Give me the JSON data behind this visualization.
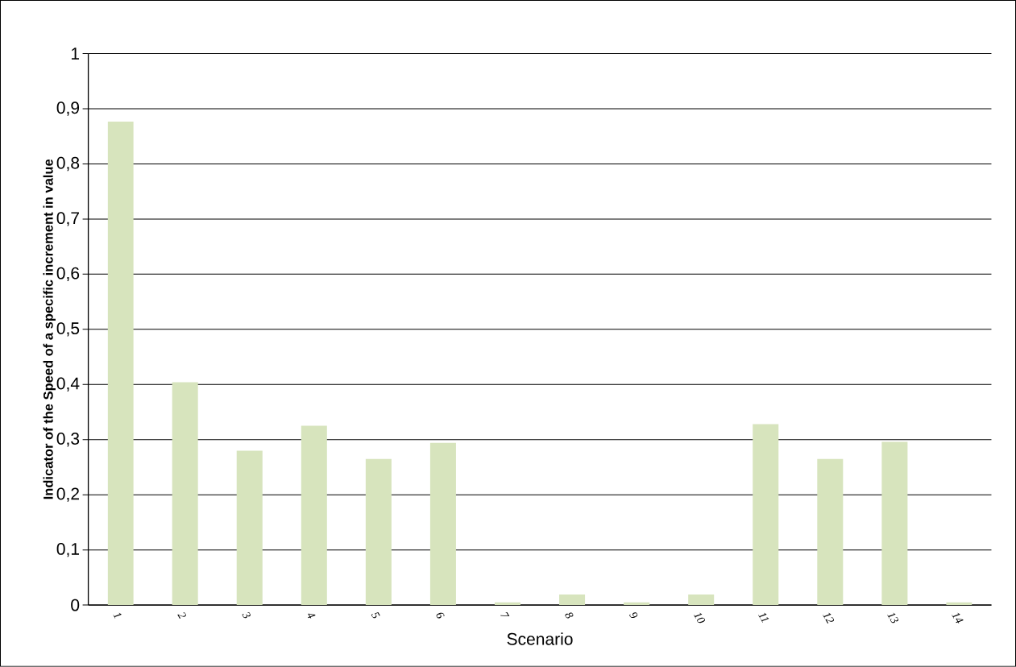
{
  "chart_data": {
    "type": "bar",
    "xlabel": "Scenario",
    "ylabel": "Indicator of the Speed of a specific increment in value",
    "categories": [
      "1",
      "2",
      "3",
      "4",
      "5",
      "6",
      "7",
      "8",
      "9",
      "10",
      "11",
      "12",
      "13",
      "14"
    ],
    "values": [
      0.877,
      0.404,
      0.28,
      0.325,
      0.265,
      0.294,
      0.005,
      0.019,
      0.005,
      0.019,
      0.328,
      0.265,
      0.296,
      0.005
    ],
    "color": "#d7e4bd",
    "ylim": [
      0,
      1
    ],
    "yticks": [
      0,
      {
        "value": 0.1,
        "label": "0,1"
      },
      {
        "value": 0.2,
        "label": "0,2"
      },
      {
        "value": 0.3,
        "label": "0,3"
      },
      {
        "value": 0.4,
        "label": "0,4"
      },
      {
        "value": 0.5,
        "label": "0,5"
      },
      {
        "value": 0.6,
        "label": "0,6"
      },
      {
        "value": 0.7,
        "label": "0,7"
      },
      {
        "value": 0.8,
        "label": "0,8"
      },
      {
        "value": 0.9,
        "label": "0,9"
      },
      1
    ],
    "grid": "y"
  }
}
